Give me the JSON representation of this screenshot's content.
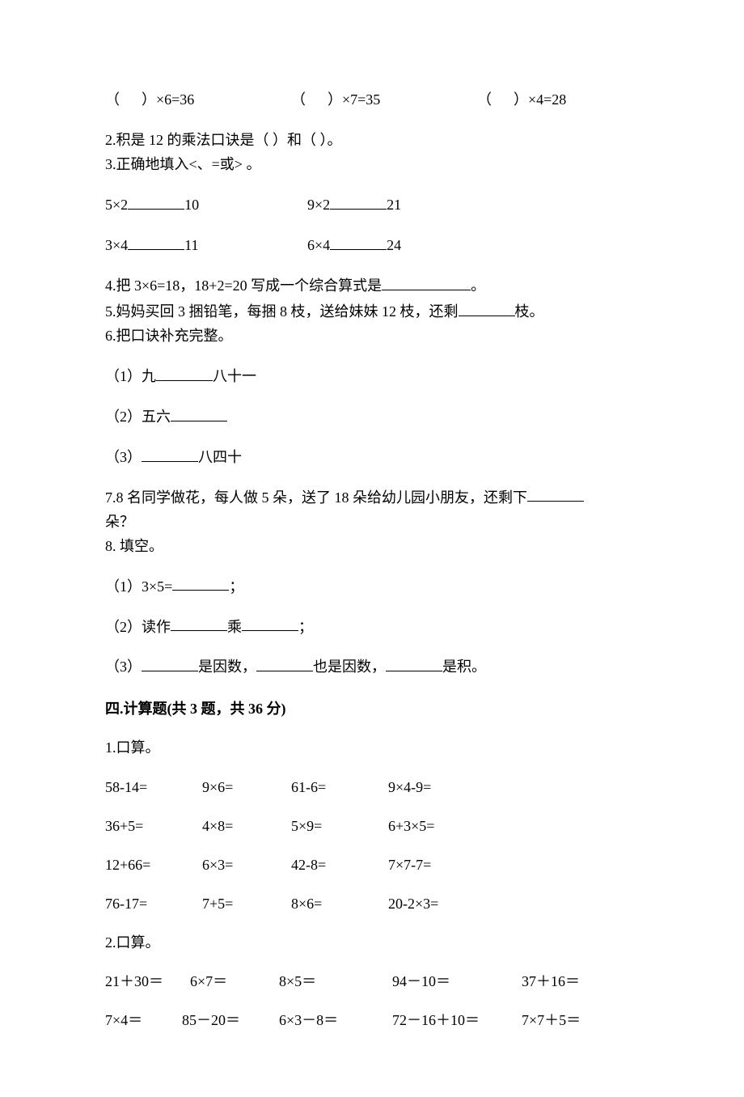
{
  "q1_top": {
    "a": "（      ）×6=36",
    "b": "（      ）×7=35",
    "c": "（      ）×4=28"
  },
  "q2": "2.积是 12 的乘法口诀是（        ）和（          ）。",
  "q3_intro": "3.正确地填入<、=或> 。",
  "q3": {
    "a_left": "5×2",
    "a_right": "10",
    "b_left": "9×2",
    "b_right": "21",
    "c_left": "3×4",
    "c_right": "11",
    "d_left": "6×4",
    "d_right": "24"
  },
  "q4_pre": "4.把 3×6=18，18+2=20 写成一个综合算式是",
  "q4_post": "。",
  "q5_pre": "5.妈妈买回 3 捆铅笔，每捆 8 枝，送给妹妹 12 枝，还剩",
  "q5_post": "枝。",
  "q6_intro": "6.把口诀补充完整。",
  "q6_1_pre": "（1）九",
  "q6_1_post": "八十一",
  "q6_2_pre": "（2）五六",
  "q6_3_pre": "（3）",
  "q6_3_post": "八四十",
  "q7_pre": "7.8 名同学做花，每人做 5 朵，送了 18 朵给幼儿园小朋友，还剩下",
  "q7_post": "朵？",
  "q8_intro": "8.  填空。",
  "q8_1_pre": "（1）3×5=",
  "q8_1_post": "；",
  "q8_2_pre": "（2）读作",
  "q8_2_mid": "乘",
  "q8_2_post": "；",
  "q8_3_pre": "（3）",
  "q8_3_mid1": "是因数，",
  "q8_3_mid2": "也是因数，",
  "q8_3_post": "是积。",
  "section4_title": "四.计算题(共 3 题，共 36 分)",
  "calc1_intro": "1.口算。",
  "calc1_rows": [
    [
      "58-14=",
      "9×6=",
      "61-6=",
      "9×4-9="
    ],
    [
      "36+5=",
      "4×8=",
      "5×9=",
      "6+3×5="
    ],
    [
      "12+66=",
      "6×3=",
      "42-8=",
      "7×7-7="
    ],
    [
      "76-17=",
      "7+5=",
      "8×6=",
      "20-2×3="
    ]
  ],
  "calc2_intro": "2.口算。",
  "calc2_rows": [
    [
      "21＋30＝",
      "6×7＝",
      "8×5＝",
      "94－10＝",
      "37＋16＝"
    ],
    [
      "7×4＝",
      "85－20＝",
      "6×3－8＝",
      "72－16＋10＝",
      "7×7＋5＝"
    ]
  ],
  "layout": {
    "calc1_col_widths": [
      120,
      110,
      120,
      140
    ],
    "calc2_col_widths_row1": [
      105,
      110,
      140,
      160,
      120
    ],
    "calc2_col_widths_row2": [
      95,
      120,
      140,
      160,
      120
    ]
  }
}
